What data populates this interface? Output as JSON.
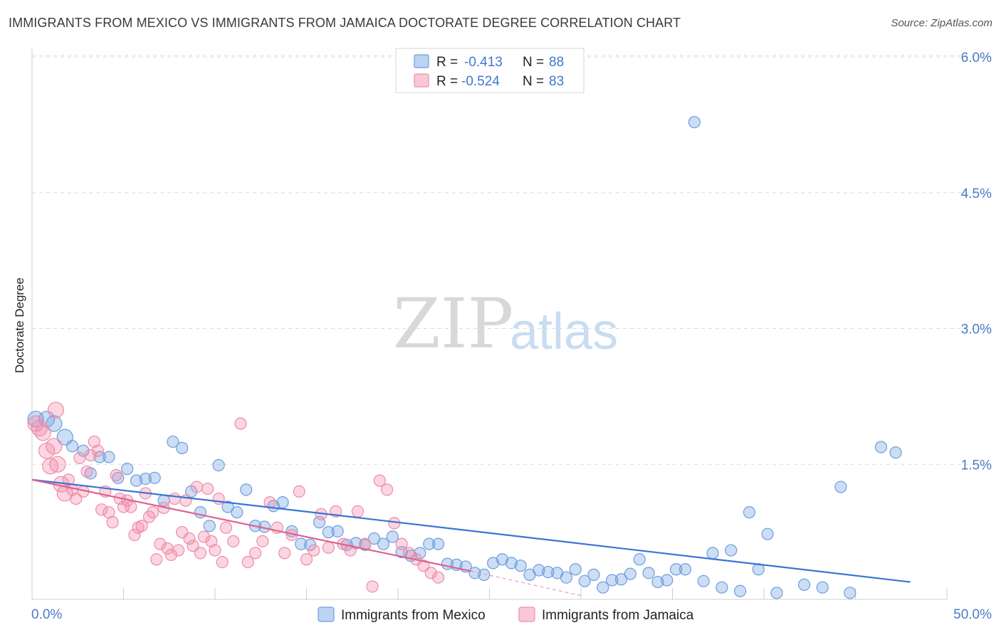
{
  "header": {
    "title": "IMMIGRANTS FROM MEXICO VS IMMIGRANTS FROM JAMAICA DOCTORATE DEGREE CORRELATION CHART",
    "source": "Source: ZipAtlas.com"
  },
  "watermark": {
    "zip": "ZIP",
    "atlas": "atlas"
  },
  "chart_data": {
    "type": "scatter",
    "title": "IMMIGRANTS FROM MEXICO VS IMMIGRANTS FROM JAMAICA DOCTORATE DEGREE CORRELATION CHART",
    "xlabel": "",
    "ylabel": "Doctorate Degree",
    "xlim": [
      0,
      50
    ],
    "ylim": [
      0,
      6.2
    ],
    "x_tick_labels": [
      "0.0%",
      "50.0%"
    ],
    "y_ticks": [
      1.5,
      3.0,
      4.5,
      6.0
    ],
    "y_tick_labels": [
      "1.5%",
      "3.0%",
      "4.5%",
      "6.0%"
    ],
    "grid": true,
    "legend_position": "top-center",
    "colors": {
      "mexico": "#6c9ee0",
      "jamaica": "#f08aa8",
      "mexico_line": "#3a74d4",
      "jamaica_line": "#e0628e"
    },
    "stats": [
      {
        "r_label": "R =",
        "r": "-0.413",
        "n_label": "N =",
        "n": "88"
      },
      {
        "r_label": "R =",
        "r": "-0.524",
        "n_label": "N =",
        "n": "83"
      }
    ],
    "series": [
      {
        "name": "Immigrants from Mexico",
        "trend": {
          "x": [
            0,
            48
          ],
          "y": [
            1.33,
            0.2
          ]
        },
        "points": [
          [
            0.2,
            2.0
          ],
          [
            0.8,
            2.0
          ],
          [
            1.2,
            1.95
          ],
          [
            1.8,
            1.8
          ],
          [
            2.2,
            1.7
          ],
          [
            2.8,
            1.65
          ],
          [
            3.2,
            1.4
          ],
          [
            3.7,
            1.58
          ],
          [
            4.2,
            1.58
          ],
          [
            4.7,
            1.35
          ],
          [
            5.2,
            1.45
          ],
          [
            5.7,
            1.32
          ],
          [
            6.2,
            1.34
          ],
          [
            6.7,
            1.35
          ],
          [
            7.2,
            1.1
          ],
          [
            7.7,
            1.75
          ],
          [
            8.2,
            1.68
          ],
          [
            8.7,
            1.2
          ],
          [
            9.2,
            0.97
          ],
          [
            9.7,
            0.82
          ],
          [
            10.2,
            1.49
          ],
          [
            10.7,
            1.03
          ],
          [
            11.2,
            0.97
          ],
          [
            11.7,
            1.22
          ],
          [
            12.2,
            0.82
          ],
          [
            12.7,
            0.81
          ],
          [
            13.2,
            1.04
          ],
          [
            13.7,
            1.08
          ],
          [
            14.2,
            0.76
          ],
          [
            14.7,
            0.62
          ],
          [
            15.2,
            0.61
          ],
          [
            15.7,
            0.86
          ],
          [
            16.2,
            0.75
          ],
          [
            16.7,
            0.76
          ],
          [
            17.2,
            0.61
          ],
          [
            17.7,
            0.63
          ],
          [
            18.2,
            0.61
          ],
          [
            18.7,
            0.68
          ],
          [
            19.2,
            0.62
          ],
          [
            19.7,
            0.7
          ],
          [
            20.2,
            0.53
          ],
          [
            20.7,
            0.49
          ],
          [
            21.2,
            0.52
          ],
          [
            21.7,
            0.62
          ],
          [
            22.2,
            0.62
          ],
          [
            22.7,
            0.4
          ],
          [
            23.2,
            0.39
          ],
          [
            23.7,
            0.37
          ],
          [
            24.2,
            0.3
          ],
          [
            24.7,
            0.28
          ],
          [
            25.2,
            0.41
          ],
          [
            25.7,
            0.45
          ],
          [
            26.2,
            0.41
          ],
          [
            26.7,
            0.38
          ],
          [
            27.2,
            0.28
          ],
          [
            27.7,
            0.33
          ],
          [
            28.2,
            0.31
          ],
          [
            28.7,
            0.3
          ],
          [
            29.2,
            0.25
          ],
          [
            29.7,
            0.34
          ],
          [
            30.2,
            0.21
          ],
          [
            30.7,
            0.28
          ],
          [
            31.2,
            0.14
          ],
          [
            31.7,
            0.22
          ],
          [
            32.2,
            0.23
          ],
          [
            32.7,
            0.29
          ],
          [
            33.2,
            0.45
          ],
          [
            33.7,
            0.3
          ],
          [
            34.2,
            0.2
          ],
          [
            34.7,
            0.22
          ],
          [
            35.2,
            0.34
          ],
          [
            35.7,
            0.34
          ],
          [
            36.2,
            5.28
          ],
          [
            36.7,
            0.21
          ],
          [
            37.2,
            0.52
          ],
          [
            37.7,
            0.14
          ],
          [
            38.2,
            0.55
          ],
          [
            38.7,
            0.1
          ],
          [
            39.2,
            0.97
          ],
          [
            39.7,
            0.34
          ],
          [
            40.2,
            0.73
          ],
          [
            40.7,
            0.08
          ],
          [
            42.2,
            0.17
          ],
          [
            43.2,
            0.14
          ],
          [
            44.2,
            1.25
          ],
          [
            44.7,
            0.08
          ],
          [
            46.4,
            1.69
          ],
          [
            47.2,
            1.63
          ]
        ]
      },
      {
        "name": "Immigrants from Jamaica",
        "trend": {
          "x": [
            0,
            24
          ],
          "y": [
            1.33,
            0.32
          ]
        },
        "trend_dashed": {
          "x": [
            24,
            30
          ],
          "y": [
            0.32,
            0.05
          ]
        },
        "points": [
          [
            0.2,
            1.95
          ],
          [
            0.4,
            1.9
          ],
          [
            0.6,
            1.85
          ],
          [
            0.8,
            1.65
          ],
          [
            1.0,
            1.48
          ],
          [
            1.2,
            1.7
          ],
          [
            1.3,
            2.1
          ],
          [
            1.4,
            1.5
          ],
          [
            1.6,
            1.28
          ],
          [
            1.8,
            1.18
          ],
          [
            2.0,
            1.33
          ],
          [
            2.2,
            1.22
          ],
          [
            2.4,
            1.12
          ],
          [
            2.6,
            1.57
          ],
          [
            2.8,
            1.2
          ],
          [
            3.0,
            1.42
          ],
          [
            3.2,
            1.6
          ],
          [
            3.4,
            1.75
          ],
          [
            3.6,
            1.65
          ],
          [
            3.8,
            1.0
          ],
          [
            4.0,
            1.2
          ],
          [
            4.2,
            0.97
          ],
          [
            4.4,
            0.86
          ],
          [
            4.6,
            1.38
          ],
          [
            4.8,
            1.12
          ],
          [
            5.0,
            1.03
          ],
          [
            5.2,
            1.1
          ],
          [
            5.4,
            1.03
          ],
          [
            5.6,
            0.72
          ],
          [
            5.8,
            0.8
          ],
          [
            6.0,
            0.82
          ],
          [
            6.2,
            1.18
          ],
          [
            6.4,
            0.92
          ],
          [
            6.6,
            0.97
          ],
          [
            6.8,
            0.45
          ],
          [
            7.0,
            0.62
          ],
          [
            7.2,
            1.02
          ],
          [
            7.4,
            0.57
          ],
          [
            7.6,
            0.5
          ],
          [
            7.8,
            1.12
          ],
          [
            8.0,
            0.55
          ],
          [
            8.2,
            0.75
          ],
          [
            8.4,
            1.1
          ],
          [
            8.6,
            0.68
          ],
          [
            8.8,
            0.6
          ],
          [
            9.0,
            1.25
          ],
          [
            9.2,
            0.52
          ],
          [
            9.4,
            0.7
          ],
          [
            9.6,
            1.23
          ],
          [
            9.8,
            0.65
          ],
          [
            10.0,
            0.55
          ],
          [
            10.2,
            1.12
          ],
          [
            10.4,
            0.42
          ],
          [
            10.6,
            0.8
          ],
          [
            11.0,
            0.65
          ],
          [
            11.4,
            1.95
          ],
          [
            11.8,
            0.42
          ],
          [
            12.2,
            0.52
          ],
          [
            12.6,
            0.65
          ],
          [
            13.0,
            1.08
          ],
          [
            13.4,
            0.8
          ],
          [
            13.8,
            0.52
          ],
          [
            14.2,
            0.72
          ],
          [
            14.6,
            1.2
          ],
          [
            15.0,
            0.45
          ],
          [
            15.4,
            0.55
          ],
          [
            15.8,
            0.95
          ],
          [
            16.2,
            0.58
          ],
          [
            16.6,
            0.98
          ],
          [
            17.0,
            0.62
          ],
          [
            17.4,
            0.55
          ],
          [
            17.8,
            0.98
          ],
          [
            18.2,
            0.62
          ],
          [
            18.6,
            0.15
          ],
          [
            19.0,
            1.32
          ],
          [
            19.4,
            1.22
          ],
          [
            19.8,
            0.85
          ],
          [
            20.2,
            0.62
          ],
          [
            20.6,
            0.52
          ],
          [
            21.0,
            0.45
          ],
          [
            21.4,
            0.38
          ],
          [
            21.8,
            0.3
          ],
          [
            22.2,
            0.25
          ]
        ]
      }
    ]
  },
  "legend": {
    "items": [
      {
        "label": "Immigrants from Mexico"
      },
      {
        "label": "Immigrants from Jamaica"
      }
    ]
  }
}
